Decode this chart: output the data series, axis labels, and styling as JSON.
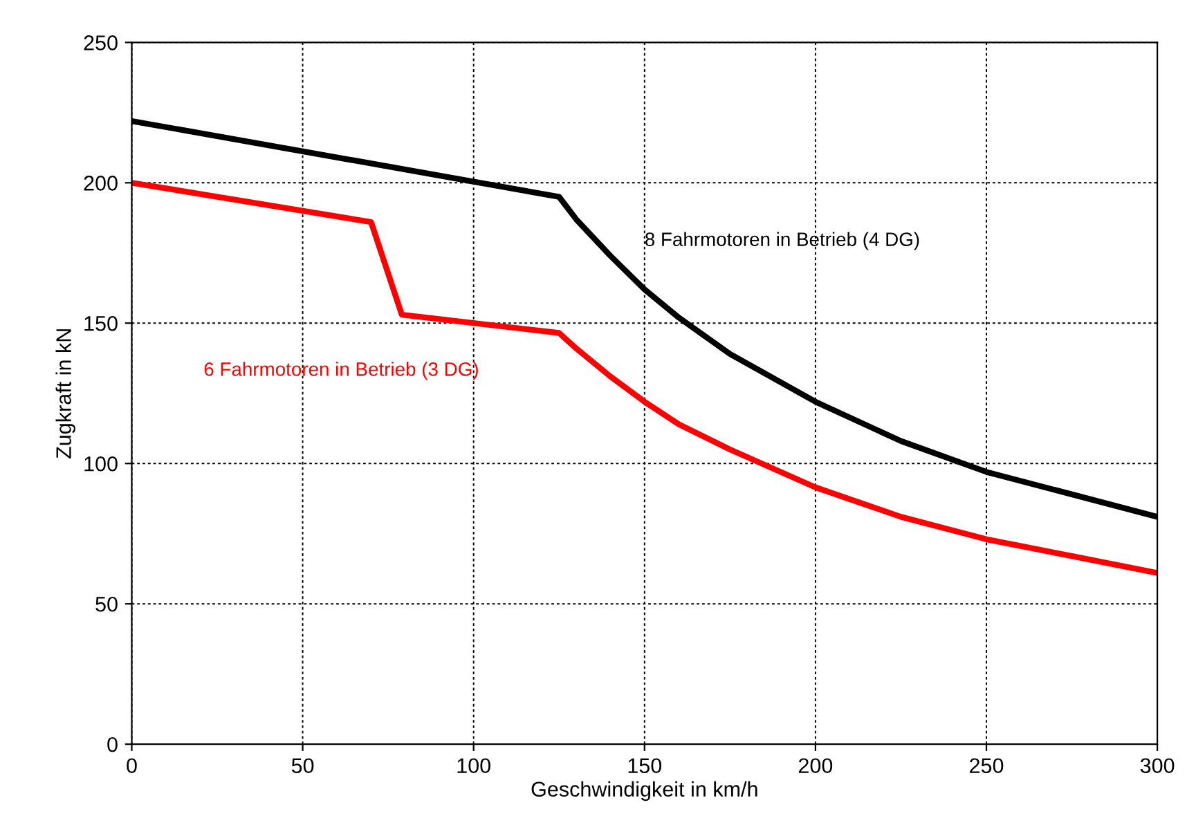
{
  "chart_data": {
    "type": "line",
    "xlabel": "Geschwindigkeit in km/h",
    "ylabel": "Zugkraft in kN",
    "xlim": [
      0,
      300
    ],
    "ylim": [
      0,
      250
    ],
    "xticks": [
      0,
      50,
      100,
      150,
      200,
      250,
      300
    ],
    "yticks": [
      0,
      50,
      100,
      150,
      200,
      250
    ],
    "grid": true,
    "line_style": "solid",
    "marker": "none",
    "legend": false,
    "series": [
      {
        "name": "8 Fahrmotoren in Betrieb (4 DG)",
        "color": "#000000",
        "x": [
          0,
          125,
          130,
          140,
          150,
          160,
          175,
          200,
          225,
          250,
          275,
          300
        ],
        "values": [
          222,
          195,
          187,
          174,
          162,
          152,
          139,
          122,
          108,
          97,
          89,
          81
        ]
      },
      {
        "name": "6 Fahrmotoren in Betrieb (3 DG)",
        "color": "#ff0000",
        "x": [
          0,
          70,
          79,
          125,
          130,
          140,
          150,
          160,
          175,
          200,
          225,
          250,
          275,
          300
        ],
        "values": [
          200,
          186,
          153,
          146.5,
          141,
          131,
          122,
          114,
          105,
          91.5,
          81,
          73,
          67,
          61
        ]
      }
    ]
  }
}
